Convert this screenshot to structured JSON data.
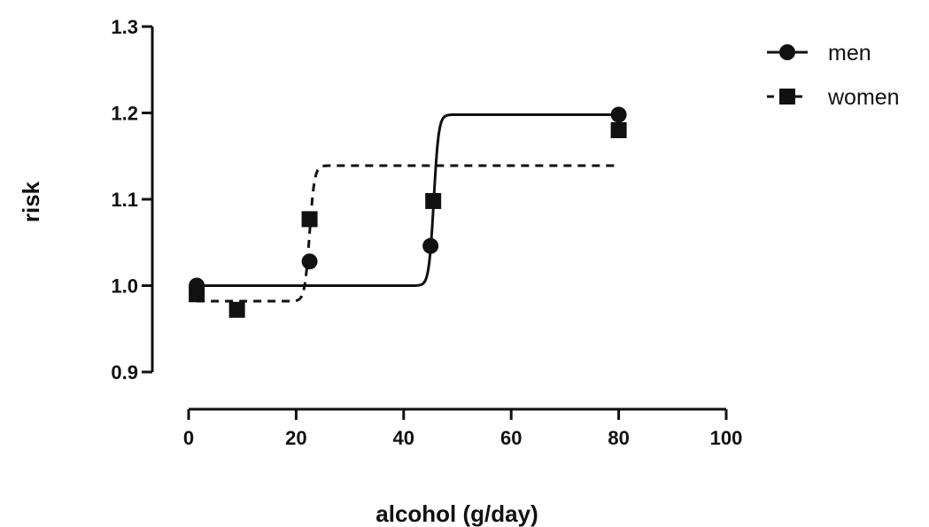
{
  "chart_data": {
    "type": "scatter",
    "title": "",
    "xlabel": "alcohol (g/day)",
    "ylabel": "risk",
    "xlim": [
      0,
      100
    ],
    "ylim": [
      0.9,
      1.3
    ],
    "x_ticks": [
      "0",
      "20",
      "40",
      "60",
      "80",
      "100"
    ],
    "y_ticks": [
      "0.9",
      "1.0",
      "1.1",
      "1.2",
      "1.3"
    ],
    "grid": false,
    "legend_position": "top-right",
    "series": [
      {
        "name": "men",
        "marker": "circle",
        "line_style": "solid",
        "color": "#111111",
        "points": [
          {
            "x": 1.5,
            "y": 1.0
          },
          {
            "x": 22.5,
            "y": 1.028
          },
          {
            "x": 45,
            "y": 1.046
          },
          {
            "x": 80,
            "y": 1.198
          }
        ],
        "fit": {
          "bottom": 1.0,
          "top": 1.198,
          "midpoint": 45.6,
          "x_range": [
            1.5,
            80
          ]
        }
      },
      {
        "name": "women",
        "marker": "square",
        "line_style": "dashed",
        "color": "#111111",
        "points": [
          {
            "x": 1.5,
            "y": 0.99
          },
          {
            "x": 9,
            "y": 0.972
          },
          {
            "x": 22.5,
            "y": 1.077
          },
          {
            "x": 45.5,
            "y": 1.098
          },
          {
            "x": 80,
            "y": 1.18
          }
        ],
        "fit": {
          "bottom": 0.982,
          "top": 1.139,
          "midpoint": 22.5,
          "x_range": [
            1.5,
            80
          ]
        }
      }
    ]
  }
}
